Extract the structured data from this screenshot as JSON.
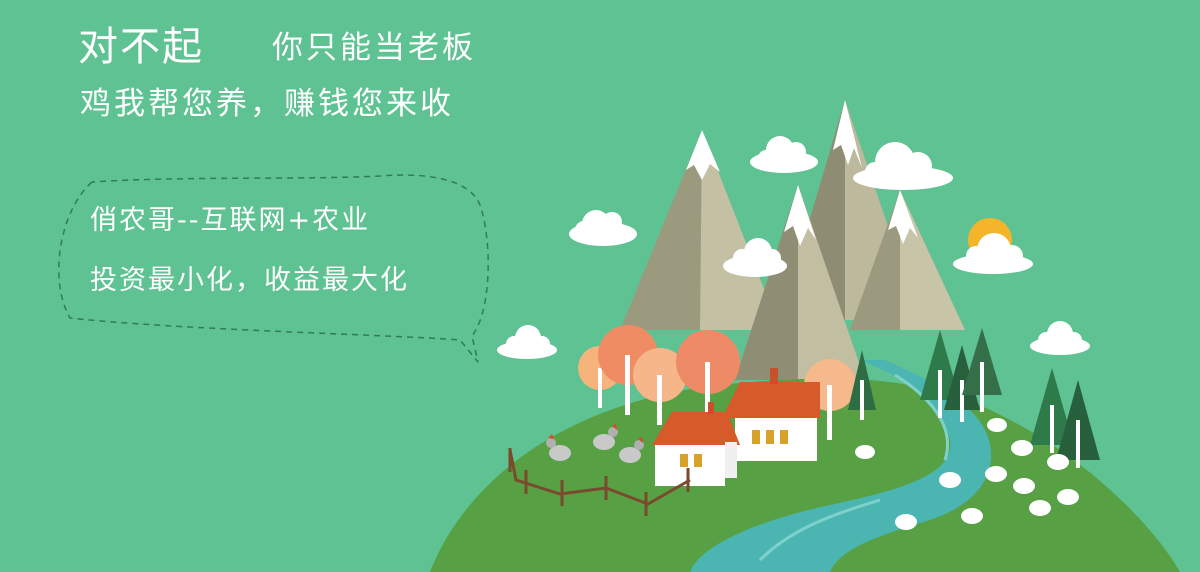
{
  "headline": {
    "part1": "对不起",
    "part2": "你只能当老板"
  },
  "subheadline": "鸡我帮您养，赚钱您来收",
  "speech_bubble": {
    "line1": "俏农哥--互联网+农业",
    "line2": "投资最小化，收益最大化"
  },
  "colors": {
    "background": "#5fc292",
    "hill": "#57a043",
    "river": "#4bb6b1",
    "mountain": "#8f8f77",
    "house_roof": "#d65a2a",
    "sun": "#f5b52b"
  },
  "illustration": {
    "icons": [
      "mountain-icon",
      "cloud-icon",
      "sun-icon",
      "tree-icon",
      "house-icon",
      "river-icon",
      "fence-icon",
      "chicken-icon",
      "sheep-icon"
    ]
  }
}
